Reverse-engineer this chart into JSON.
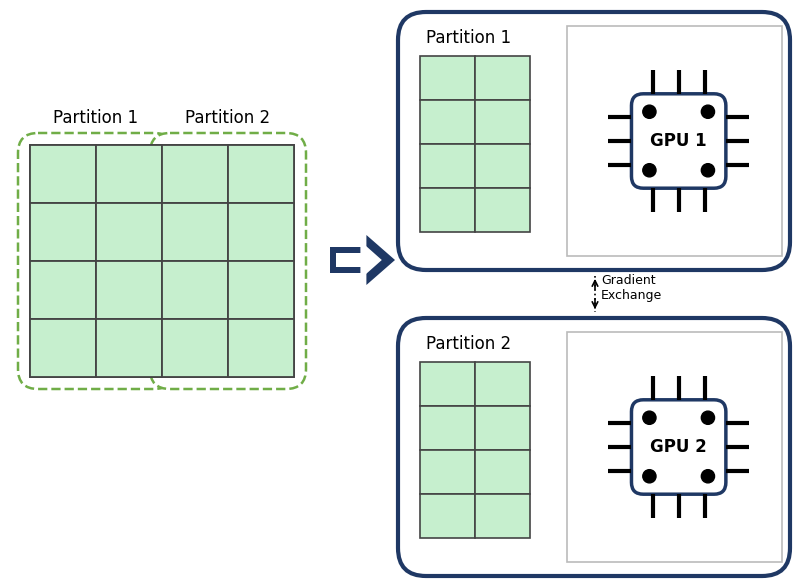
{
  "bg_color": "#ffffff",
  "dark_blue": "#1f3864",
  "green_fill": "#c6efce",
  "green_border": "#5a9e3a",
  "dashed_green": "#70ad47",
  "grid_color": "#444444",
  "partition1_label": "Partition 1",
  "partition2_label": "Partition 2",
  "gpu1_label": "GPU 1",
  "gpu2_label": "GPU 2",
  "gradient_label": "Gradient\nExchange"
}
